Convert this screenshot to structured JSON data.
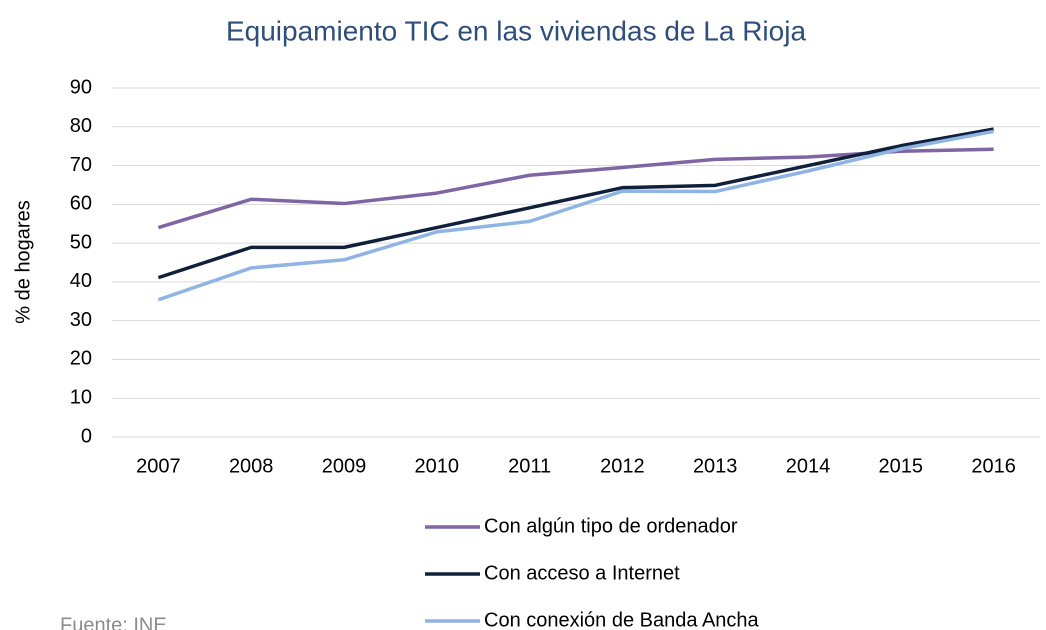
{
  "chart_data": {
    "type": "line",
    "title": "Equipamiento TIC en las viviendas de La Rioja",
    "y_label": "% de hogares",
    "source": "Fuente: INE",
    "categories": [
      "2007",
      "2008",
      "2009",
      "2010",
      "2011",
      "2012",
      "2013",
      "2014",
      "2015",
      "2016"
    ],
    "series": [
      {
        "name": "Con algún tipo de ordenador",
        "color": "#7f65a3",
        "values": [
          54.0,
          61.3,
          60.2,
          62.9,
          67.5,
          69.5,
          71.6,
          72.2,
          73.7,
          74.2
        ]
      },
      {
        "name": "Con acceso a Internet",
        "color": "#10203b",
        "values": [
          41.1,
          48.9,
          48.9,
          54.0,
          59.1,
          64.3,
          64.9,
          70.0,
          75.1,
          79.4
        ]
      },
      {
        "name": "Con conexión de Banda Ancha",
        "color": "#8fb4e3",
        "values": [
          35.4,
          43.6,
          45.7,
          52.9,
          55.6,
          63.4,
          63.3,
          68.6,
          74.3,
          78.8
        ]
      }
    ],
    "ylim": [
      0,
      90
    ],
    "yticks": [
      0,
      10,
      20,
      30,
      40,
      50,
      60,
      70,
      80,
      90
    ],
    "grid": true
  }
}
